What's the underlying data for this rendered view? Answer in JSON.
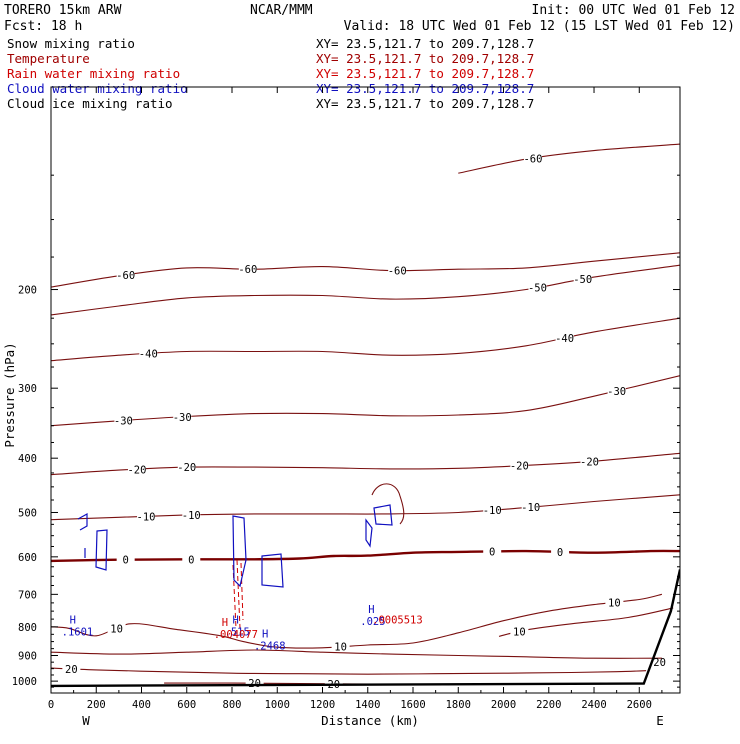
{
  "header": {
    "model": "TORERO  15km ARW",
    "center": "NCAR/MMM",
    "init": "Init: 00 UTC Wed 01 Feb 12",
    "fcst": "Fcst:   18 h",
    "valid": "Valid: 18 UTC Wed 01 Feb 12 (15 LST Wed 01 Feb 12)"
  },
  "legend": [
    {
      "name": "Snow mixing ratio",
      "color": "#000000",
      "xy": "XY=  23.5,121.7 to 209.7,128.7",
      "xy_color": "#000000"
    },
    {
      "name": "Temperature",
      "color": "#a00000",
      "xy": "XY=  23.5,121.7 to 209.7,128.7",
      "xy_color": "#a00000"
    },
    {
      "name": "Rain water mixing ratio",
      "color": "#d00000",
      "xy": "XY=  23.5,121.7 to 209.7,128.7",
      "xy_color": "#d00000"
    },
    {
      "name": "Cloud water mixing ratio",
      "color": "#1010c0",
      "xy": "XY=  23.5,121.7 to 209.7,128.7",
      "xy_color": "#1010c0"
    },
    {
      "name": "Cloud ice mixing ratio",
      "color": "#000000",
      "xy": "XY=  23.5,121.7 to 209.7,128.7",
      "xy_color": "#000000"
    }
  ],
  "colors": {
    "temperature": "#7a1010",
    "zero_line": "#7a0000",
    "rain": "#d00000",
    "cloud_water": "#1010c0",
    "axis": "#000000",
    "terrain": "#000000"
  },
  "chart_data": {
    "type": "line",
    "title": "Vertical cross-section",
    "xlabel": "Distance (km)",
    "ylabel": "Pressure (hPa)",
    "xlim": [
      0,
      2780
    ],
    "ylim": [
      1050,
      87
    ],
    "y_scale": "log-pressure",
    "x_ticks": [
      0,
      200,
      400,
      600,
      800,
      1000,
      1200,
      1400,
      1600,
      1800,
      2000,
      2200,
      2400,
      2600
    ],
    "y_ticks": [
      200,
      300,
      400,
      500,
      600,
      700,
      800,
      900,
      1000
    ],
    "end_labels": {
      "left": "W",
      "right": "E"
    },
    "temperature_levels": [
      {
        "label": "-60",
        "x": [
          0,
          300,
          600,
          900,
          1200,
          1500,
          1800,
          2100,
          2400,
          2780
        ],
        "p": [
          198,
          189,
          183,
          184,
          182,
          185,
          184,
          183,
          178,
          172
        ],
        "labels_at": [
          {
            "d": 330,
            "t": "-60"
          },
          {
            "d": 870,
            "t": "-60"
          },
          {
            "d": 1530,
            "t": "-60"
          }
        ]
      },
      {
        "label": "-60",
        "x": [
          1800,
          2100,
          2400,
          2780
        ],
        "p": [
          124,
          117,
          113,
          110
        ],
        "labels_at": [
          {
            "d": 2130,
            "t": "-60"
          }
        ]
      },
      {
        "label": "-50",
        "x": [
          0,
          300,
          600,
          900,
          1200,
          1500,
          1800,
          2100,
          2400,
          2780
        ],
        "p": [
          222,
          214,
          207,
          205,
          205,
          208,
          206,
          200,
          190,
          181
        ],
        "labels_at": [
          {
            "d": 2150,
            "t": "-50"
          },
          {
            "d": 2350,
            "t": "-50"
          }
        ]
      },
      {
        "label": "-40",
        "x": [
          0,
          300,
          600,
          900,
          1200,
          1500,
          1800,
          2100,
          2400,
          2780
        ],
        "p": [
          268,
          262,
          258,
          258,
          258,
          262,
          260,
          252,
          238,
          225
        ],
        "labels_at": [
          {
            "d": 430,
            "t": "-40"
          },
          {
            "d": 2270,
            "t": "-40"
          }
        ]
      },
      {
        "label": "-30",
        "x": [
          0,
          300,
          600,
          900,
          1200,
          1500,
          1800,
          2100,
          2400,
          2780
        ],
        "p": [
          350,
          343,
          337,
          333,
          333,
          336,
          335,
          329,
          310,
          285
        ],
        "labels_at": [
          {
            "d": 320,
            "t": "-30"
          },
          {
            "d": 580,
            "t": "-30"
          },
          {
            "d": 2500,
            "t": "-30"
          }
        ]
      },
      {
        "label": "-20",
        "x": [
          0,
          300,
          600,
          900,
          1200,
          1500,
          1800,
          2100,
          2400,
          2780
        ],
        "p": [
          428,
          420,
          415,
          415,
          416,
          418,
          417,
          412,
          405,
          392
        ],
        "labels_at": [
          {
            "d": 380,
            "t": "-20"
          },
          {
            "d": 600,
            "t": "-20"
          },
          {
            "d": 2070,
            "t": "-20"
          },
          {
            "d": 2380,
            "t": "-20"
          }
        ]
      },
      {
        "label": "-10",
        "x": [
          0,
          300,
          600,
          900,
          1200,
          1500,
          1800,
          2100,
          2400,
          2780
        ],
        "p": [
          515,
          510,
          505,
          503,
          503,
          503,
          500,
          490,
          478,
          465
        ],
        "labels_at": [
          {
            "d": 420,
            "t": "-10"
          },
          {
            "d": 620,
            "t": "-10"
          },
          {
            "d": 1950,
            "t": "-10"
          },
          {
            "d": 2120,
            "t": "-10"
          }
        ]
      },
      {
        "label": "0",
        "x": [
          0,
          300,
          600,
          900,
          1100,
          1250,
          1400,
          1600,
          1800,
          2100,
          2400,
          2650,
          2780
        ],
        "p": [
          610,
          607,
          606,
          606,
          604,
          598,
          597,
          590,
          588,
          586,
          590,
          586,
          586
        ],
        "labels_at": [
          {
            "d": 330,
            "t": "0"
          },
          {
            "d": 620,
            "t": "0"
          },
          {
            "d": 1950,
            "t": "0"
          },
          {
            "d": 2250,
            "t": "0"
          }
        ]
      },
      {
        "label": "10",
        "x": [
          0,
          80,
          200,
          350,
          550,
          750,
          850,
          1000,
          1200,
          1400,
          1600,
          1800,
          2000,
          2200,
          2400,
          2600,
          2700
        ],
        "p": [
          800,
          805,
          830,
          790,
          808,
          830,
          850,
          870,
          872,
          862,
          855,
          820,
          780,
          750,
          730,
          715,
          700
        ],
        "labels_at": [
          {
            "d": 290,
            "t": "10"
          },
          {
            "d": 1280,
            "t": "10"
          },
          {
            "d": 2490,
            "t": "10"
          }
        ]
      },
      {
        "label": "10",
        "x": [
          1980,
          2100,
          2300,
          2550,
          2750
        ],
        "p": [
          832,
          810,
          790,
          770,
          740
        ],
        "labels_at": [
          {
            "d": 2070,
            "t": "10"
          }
        ]
      },
      {
        "label": "20",
        "x": [
          0,
          300,
          600,
          900,
          1200,
          1500,
          1800,
          2100,
          2400,
          2700
        ],
        "p": [
          888,
          895,
          888,
          880,
          888,
          895,
          900,
          905,
          910,
          910
        ],
        "labels_at": []
      },
      {
        "label": "20",
        "x": [
          0,
          200,
          500,
          800,
          1100,
          1400,
          1700,
          2000,
          2300,
          2500,
          2630
        ],
        "p": [
          948,
          955,
          962,
          968,
          970,
          972,
          970,
          968,
          965,
          962,
          958
        ],
        "labels_at": [
          {
            "d": 90,
            "t": "20"
          }
        ]
      },
      {
        "label": "20",
        "x": [
          500,
          800,
          1100,
          1400,
          1700
        ],
        "p": [
          1008,
          1008,
          1010,
          1012,
          1014
        ],
        "labels_at": [
          {
            "d": 900,
            "t": "20"
          },
          {
            "d": 1250,
            "t": "20"
          }
        ]
      }
    ],
    "terrain": {
      "x": [
        0,
        2620,
        2740,
        2780
      ],
      "p": [
        1020,
        1010,
        750,
        632
      ]
    },
    "terrain_label": {
      "d": 2690,
      "p": 925,
      "t": "20"
    },
    "cloud_water_maxima": [
      {
        "d": 100,
        "p": 803,
        "h": "H",
        "value": ".1601"
      },
      {
        "d": 820,
        "p": 803,
        "h": "H",
        "value": ".515"
      },
      {
        "d": 950,
        "p": 850,
        "h": "H",
        "value": ".2468"
      },
      {
        "d": 1420,
        "p": 768,
        "h": "H",
        "value": ".025"
      }
    ],
    "rain_maxima": [
      {
        "d": 790,
        "p": 830,
        "h": "H",
        "value": ".004077"
      },
      {
        "d": 1490,
        "p": 782,
        "h": "",
        "value": ".0005513"
      }
    ]
  }
}
